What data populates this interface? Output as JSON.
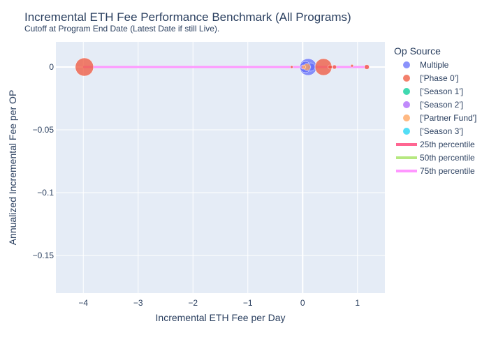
{
  "chart_data": {
    "type": "scatter",
    "title": "Incremental ETH Fee Performance Benchmark (All Programs)",
    "subtitle": "Cutoff at Program End Date (Latest Date if still Live).",
    "xlabel": "Incremental ETH Fee per Day",
    "ylabel": "Annualized Incremental Fee per OP",
    "xlim": [
      -4.5,
      1.5
    ],
    "ylim": [
      -0.18,
      0.02
    ],
    "x_ticks": [
      -4,
      -3,
      -2,
      -1,
      0,
      1
    ],
    "x_tick_labels": [
      "−4",
      "−3",
      "−2",
      "−1",
      "0",
      "1"
    ],
    "y_ticks": [
      0,
      -0.05,
      -0.1,
      -0.15
    ],
    "y_tick_labels": [
      "0",
      "−0.05",
      "−0.1",
      "−0.15"
    ],
    "grid": true,
    "legend_title": "Op Source",
    "legend_position": "right",
    "series": [
      {
        "name": "Multiple",
        "color": "#636efa",
        "points": [
          {
            "x": 0.1,
            "y": 0.0,
            "size": 12
          },
          {
            "x": 0.05,
            "y": 0.0,
            "size": 8
          },
          {
            "x": 0.15,
            "y": 0.0,
            "size": 6
          }
        ]
      },
      {
        "name": "['Phase 0']",
        "color": "#EF553B",
        "points": [
          {
            "x": -3.98,
            "y": 0.0,
            "size": 13
          },
          {
            "x": 0.38,
            "y": 0.0,
            "size": 12
          },
          {
            "x": 1.17,
            "y": 0.0,
            "size": 3.5
          },
          {
            "x": 0.9,
            "y": 0.001,
            "size": 2
          },
          {
            "x": -0.2,
            "y": 0.0,
            "size": 2
          },
          {
            "x": 0.5,
            "y": 0.0,
            "size": 3
          },
          {
            "x": 0.58,
            "y": 0.0,
            "size": 3
          }
        ]
      },
      {
        "name": "['Season 1']",
        "color": "#00cc96",
        "points": []
      },
      {
        "name": "['Season 2']",
        "color": "#ab63fa",
        "points": [
          {
            "x": 0.0,
            "y": 0.0,
            "size": 3
          }
        ]
      },
      {
        "name": "['Partner Fund']",
        "color": "#FFA15A",
        "points": [
          {
            "x": 0.08,
            "y": 0.0,
            "size": 5
          },
          {
            "x": 0.02,
            "y": 0.0,
            "size": 3
          }
        ]
      },
      {
        "name": "['Season 3']",
        "color": "#19d3f3",
        "points": []
      }
    ],
    "lines": [
      {
        "name": "25th percentile",
        "color": "#FF6692",
        "x": [
          -4.0,
          1.2
        ],
        "y": [
          0.0,
          0.0
        ]
      },
      {
        "name": "50th percentile",
        "color": "#B6E880",
        "x": [
          -4.0,
          1.2
        ],
        "y": [
          0.0,
          0.0
        ]
      },
      {
        "name": "75th percentile",
        "color": "#FF97FF",
        "x": [
          -4.0,
          1.2
        ],
        "y": [
          0.0,
          0.0
        ]
      }
    ]
  }
}
